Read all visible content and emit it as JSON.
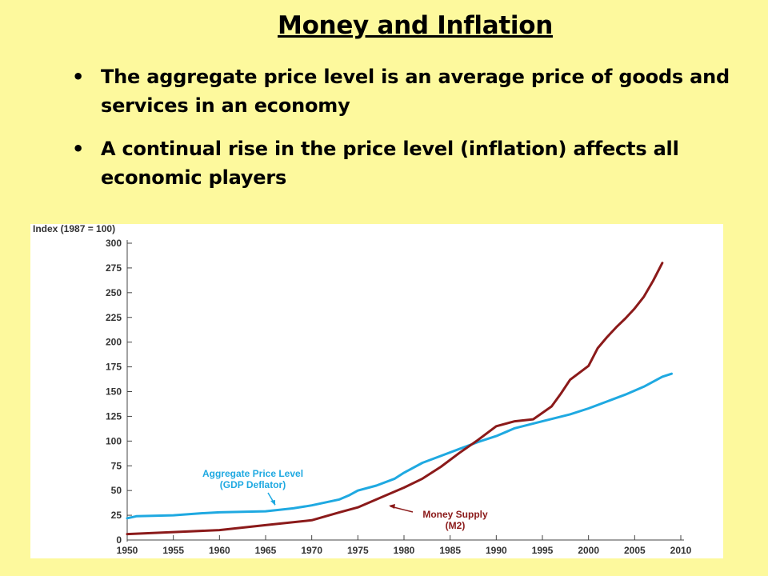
{
  "slide": {
    "title": "Money and Inflation",
    "bullets": [
      "The aggregate price level is an average price of goods and services in an economy",
      "A continual rise in the price level (inflation) affects all economic players"
    ]
  },
  "colors": {
    "background": "#fdf99d",
    "price_level": "#1fa9e1",
    "money_supply": "#8b1a1a"
  },
  "chart_data": {
    "type": "line",
    "ylabel": "Index (1987 = 100)",
    "xlim": [
      1950,
      2010
    ],
    "ylim": [
      0,
      300
    ],
    "x_ticks": [
      1950,
      1955,
      1960,
      1965,
      1970,
      1975,
      1980,
      1985,
      1990,
      1995,
      2000,
      2005,
      2010
    ],
    "y_ticks": [
      0,
      25,
      50,
      75,
      100,
      125,
      150,
      175,
      200,
      225,
      250,
      275,
      300
    ],
    "grid": false,
    "series": [
      {
        "name": "Aggregate Price Level (GDP Deflator)",
        "color": "#1fa9e1",
        "x": [
          1950,
          1951,
          1955,
          1958,
          1960,
          1965,
          1968,
          1970,
          1973,
          1974,
          1975,
          1977,
          1979,
          1980,
          1982,
          1984,
          1986,
          1988,
          1990,
          1992,
          1995,
          1998,
          2000,
          2002,
          2004,
          2006,
          2008,
          2009
        ],
        "values": [
          22,
          24,
          25,
          27,
          28,
          29,
          32,
          35,
          41,
          45,
          50,
          55,
          62,
          68,
          78,
          85,
          92,
          99,
          105,
          113,
          120,
          127,
          133,
          140,
          147,
          155,
          165,
          168
        ]
      },
      {
        "name": "Money Supply (M2)",
        "color": "#8b1a1a",
        "x": [
          1950,
          1955,
          1960,
          1965,
          1970,
          1973,
          1975,
          1978,
          1980,
          1982,
          1984,
          1986,
          1988,
          1990,
          1992,
          1994,
          1996,
          1997,
          1998,
          2000,
          2001,
          2002,
          2003,
          2004,
          2005,
          2006,
          2007,
          2008
        ],
        "values": [
          6,
          8,
          10,
          15,
          20,
          28,
          33,
          45,
          53,
          62,
          74,
          88,
          101,
          115,
          120,
          122,
          135,
          148,
          162,
          176,
          194,
          205,
          215,
          224,
          234,
          246,
          262,
          280
        ]
      }
    ],
    "annotations": [
      {
        "line1": "Aggregate Price Level",
        "line2": "(GDP Deflator)",
        "series": 0
      },
      {
        "line1": "Money Supply",
        "line2": "(M2)",
        "series": 1
      }
    ]
  }
}
